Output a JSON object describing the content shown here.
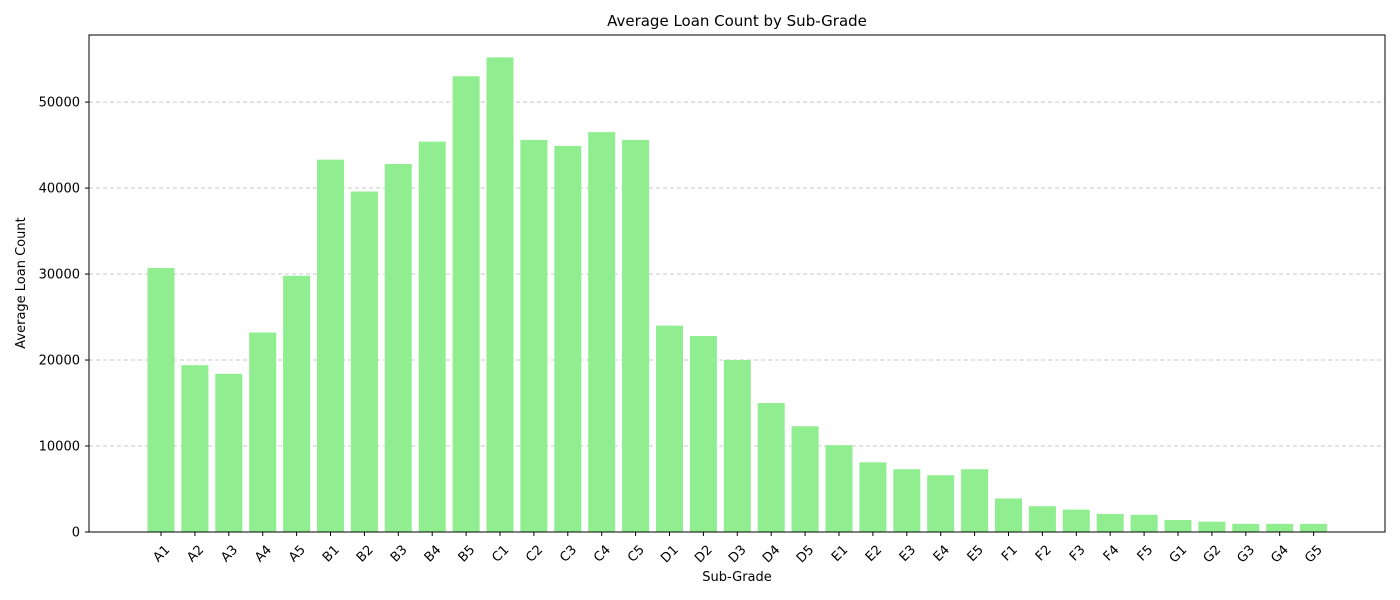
{
  "chart_data": {
    "type": "bar",
    "title": "Average Loan Count by Sub-Grade",
    "xlabel": "Sub-Grade",
    "ylabel": "Average Loan Count",
    "categories": [
      "A1",
      "A2",
      "A3",
      "A4",
      "A5",
      "B1",
      "B2",
      "B3",
      "B4",
      "B5",
      "C1",
      "C2",
      "C3",
      "C4",
      "C5",
      "D1",
      "D2",
      "D3",
      "D4",
      "D5",
      "E1",
      "E2",
      "E3",
      "E4",
      "E5",
      "F1",
      "F2",
      "F3",
      "F4",
      "F5",
      "G1",
      "G2",
      "G3",
      "G4",
      "G5"
    ],
    "values": [
      30700,
      19400,
      18400,
      23200,
      29800,
      43300,
      39600,
      42800,
      45400,
      53000,
      55200,
      45600,
      44900,
      46500,
      45600,
      24000,
      22800,
      20000,
      15000,
      12300,
      10100,
      8100,
      7300,
      6600,
      7300,
      3900,
      3000,
      2600,
      2100,
      2000,
      1400,
      1200,
      950,
      950,
      950
    ],
    "ylim": [
      0,
      57800
    ],
    "yticks": [
      0,
      10000,
      20000,
      30000,
      40000,
      50000
    ],
    "grid": "y-dashed",
    "bar_color": "#90ee90",
    "legend": "none"
  }
}
